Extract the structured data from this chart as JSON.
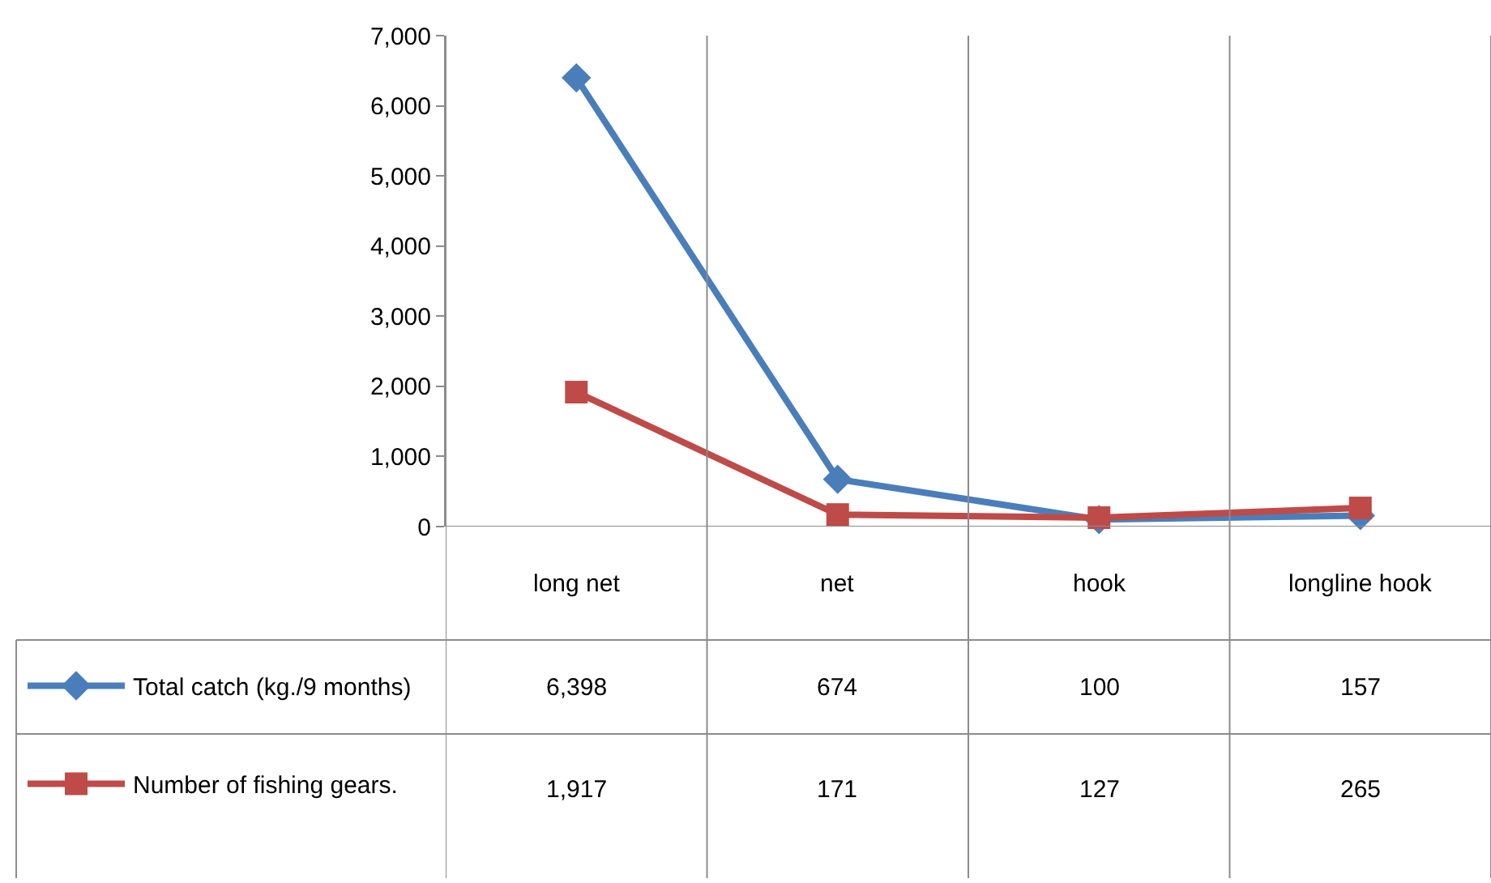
{
  "chart_data": {
    "type": "line",
    "categories": [
      "long net",
      "net",
      "hook",
      "longline hook"
    ],
    "series": [
      {
        "name": "Total catch (kg./9 months)",
        "color": "#4a7ebb",
        "marker": "diamond",
        "values": [
          6398,
          674,
          100,
          157
        ],
        "value_labels": [
          "6,398",
          "674",
          "100",
          "157"
        ]
      },
      {
        "name": "Number of fishing gears.",
        "color": "#be4b48",
        "marker": "square",
        "values": [
          1917,
          171,
          127,
          265
        ],
        "value_labels": [
          "1,917",
          "171",
          "127",
          "265"
        ]
      }
    ],
    "ylim": [
      0,
      7000
    ],
    "yticks": [
      {
        "value": 0,
        "label": "0"
      },
      {
        "value": 1000,
        "label": "1,000"
      },
      {
        "value": 2000,
        "label": "2,000"
      },
      {
        "value": 3000,
        "label": "3,000"
      },
      {
        "value": 4000,
        "label": "4,000"
      },
      {
        "value": 5000,
        "label": "5,000"
      },
      {
        "value": 6000,
        "label": "6,000"
      },
      {
        "value": 7000,
        "label": "7,000"
      }
    ],
    "grid": "x",
    "legend": "bottom left"
  }
}
